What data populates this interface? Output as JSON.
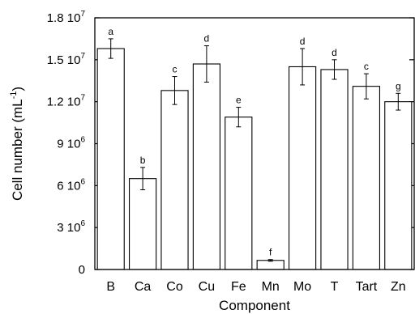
{
  "chart_data": {
    "type": "bar",
    "title": "",
    "xlabel": "Component",
    "ylabel_main": "Cell number (mL",
    "ylabel_sup": "-1",
    "ylabel_close": ")",
    "categories": [
      "B",
      "Ca",
      "Co",
      "Cu",
      "Fe",
      "Mn",
      "Mo",
      "T",
      "Tart",
      "Zn"
    ],
    "values": [
      15800000,
      6500000,
      12800000,
      14700000,
      10900000,
      650000,
      14500000,
      14300000,
      13100000,
      12000000
    ],
    "errors": [
      700000,
      800000,
      1000000,
      1300000,
      700000,
      60000,
      1300000,
      700000,
      900000,
      600000
    ],
    "significance_letters": [
      "a",
      "b",
      "c",
      "d",
      "e",
      "f",
      "d",
      "d",
      "c",
      "g"
    ],
    "ylim": [
      0,
      18000000
    ],
    "yticks": [
      {
        "value": 0,
        "mantissa": "0",
        "exponent": ""
      },
      {
        "value": 3000000,
        "mantissa": "3 10",
        "exponent": "6"
      },
      {
        "value": 6000000,
        "mantissa": "6 10",
        "exponent": "6"
      },
      {
        "value": 9000000,
        "mantissa": "9 10",
        "exponent": "6"
      },
      {
        "value": 12000000,
        "mantissa": "1.2 10",
        "exponent": "7"
      },
      {
        "value": 15000000,
        "mantissa": "1.5 10",
        "exponent": "7"
      },
      {
        "value": 18000000,
        "mantissa": "1.8 10",
        "exponent": "7"
      }
    ],
    "grid": false,
    "legend": "none"
  }
}
